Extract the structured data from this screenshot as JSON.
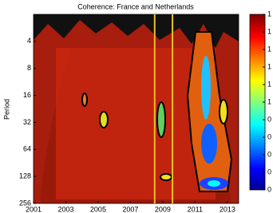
{
  "chart_data": {
    "type": "heatmap",
    "title": "Coherence: France and Netherlands",
    "ylabel": "Period",
    "xlim": [
      2001,
      2013.7
    ],
    "xticks": [
      2001,
      2003,
      2005,
      2007,
      2009,
      2011,
      2013
    ],
    "ylim": [
      2,
      256
    ],
    "yticks": [
      4,
      8,
      16,
      32,
      64,
      128,
      256
    ],
    "y_log_base": 2,
    "y_reversed": true,
    "vlines": [
      2008.5,
      2009.6
    ],
    "vline_color": "#e8c020",
    "colorbar": {
      "lim": [
        0,
        1
      ],
      "ticks": [
        {
          "value": 1,
          "label": "1"
        },
        {
          "value": 0.9,
          "label": "1"
        },
        {
          "value": 0.8,
          "label": "1"
        },
        {
          "value": 0.7,
          "label": "1"
        },
        {
          "value": 0.6,
          "label": "1"
        },
        {
          "value": 0.5,
          "label": "1"
        },
        {
          "value": 0.4,
          "label": "0"
        },
        {
          "value": 0.3,
          "label": "0"
        },
        {
          "value": 0.2,
          "label": "0"
        },
        {
          "value": 0.1,
          "label": "0"
        },
        {
          "value": 0,
          "label": "0"
        }
      ]
    }
  }
}
